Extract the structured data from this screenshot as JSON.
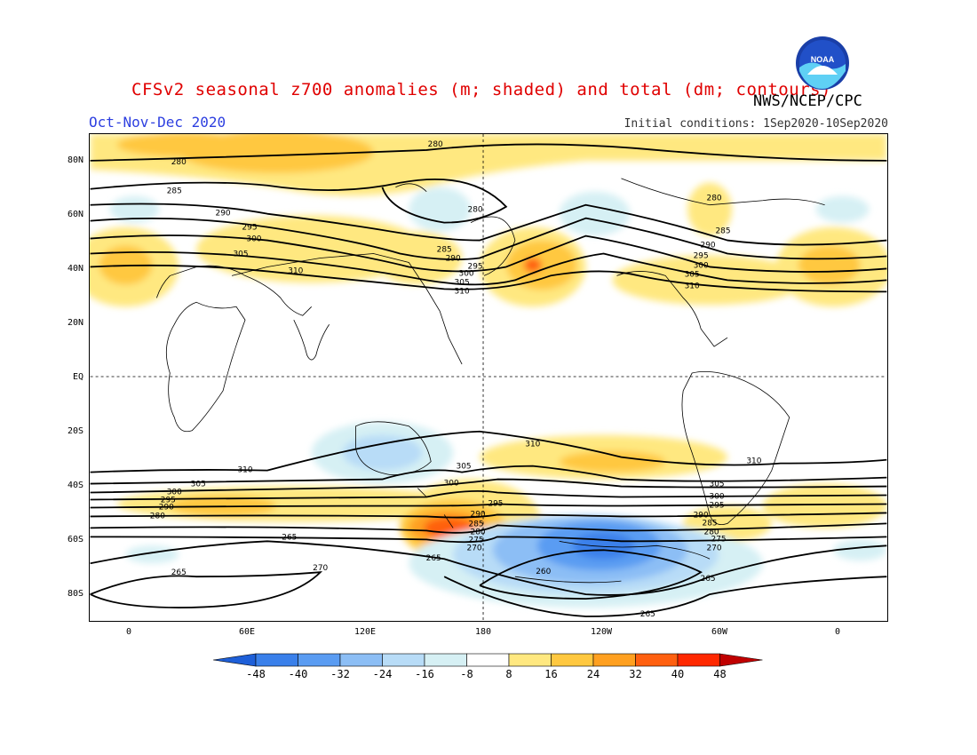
{
  "header": {
    "title": "CFSv2 seasonal z700 anomalies (m; shaded) and total (dm; contours)",
    "agency": "NWS/NCEP/CPC",
    "period": "Oct-Nov-Dec 2020",
    "initial_conditions": "Initial conditions: 1Sep2020-10Sep2020",
    "logo_text": "NOAA"
  },
  "axes": {
    "lat_labels": [
      "80N",
      "60N",
      "40N",
      "20N",
      "EQ",
      "20S",
      "40S",
      "60S",
      "80S"
    ],
    "lon_labels": [
      "0",
      "60E",
      "120E",
      "180",
      "120W",
      "60W",
      "0"
    ]
  },
  "colorbar": {
    "ticks": [
      "-48",
      "-40",
      "-32",
      "-24",
      "-16",
      "-8",
      "8",
      "16",
      "24",
      "32",
      "40",
      "48"
    ],
    "colors": [
      "#1e5fd8",
      "#3a80ea",
      "#5a9cf2",
      "#8cbef5",
      "#b8dcf7",
      "#d6f0f4",
      "#ffffff",
      "#ffe880",
      "#ffc840",
      "#ffa020",
      "#ff6010",
      "#ff2800",
      "#c00000"
    ]
  },
  "contour_labels": [
    "280",
    "285",
    "290",
    "295",
    "300",
    "305",
    "310",
    "260",
    "265",
    "270",
    "275"
  ],
  "colors": {
    "title": "#e00000",
    "period": "#2d3fe0"
  }
}
